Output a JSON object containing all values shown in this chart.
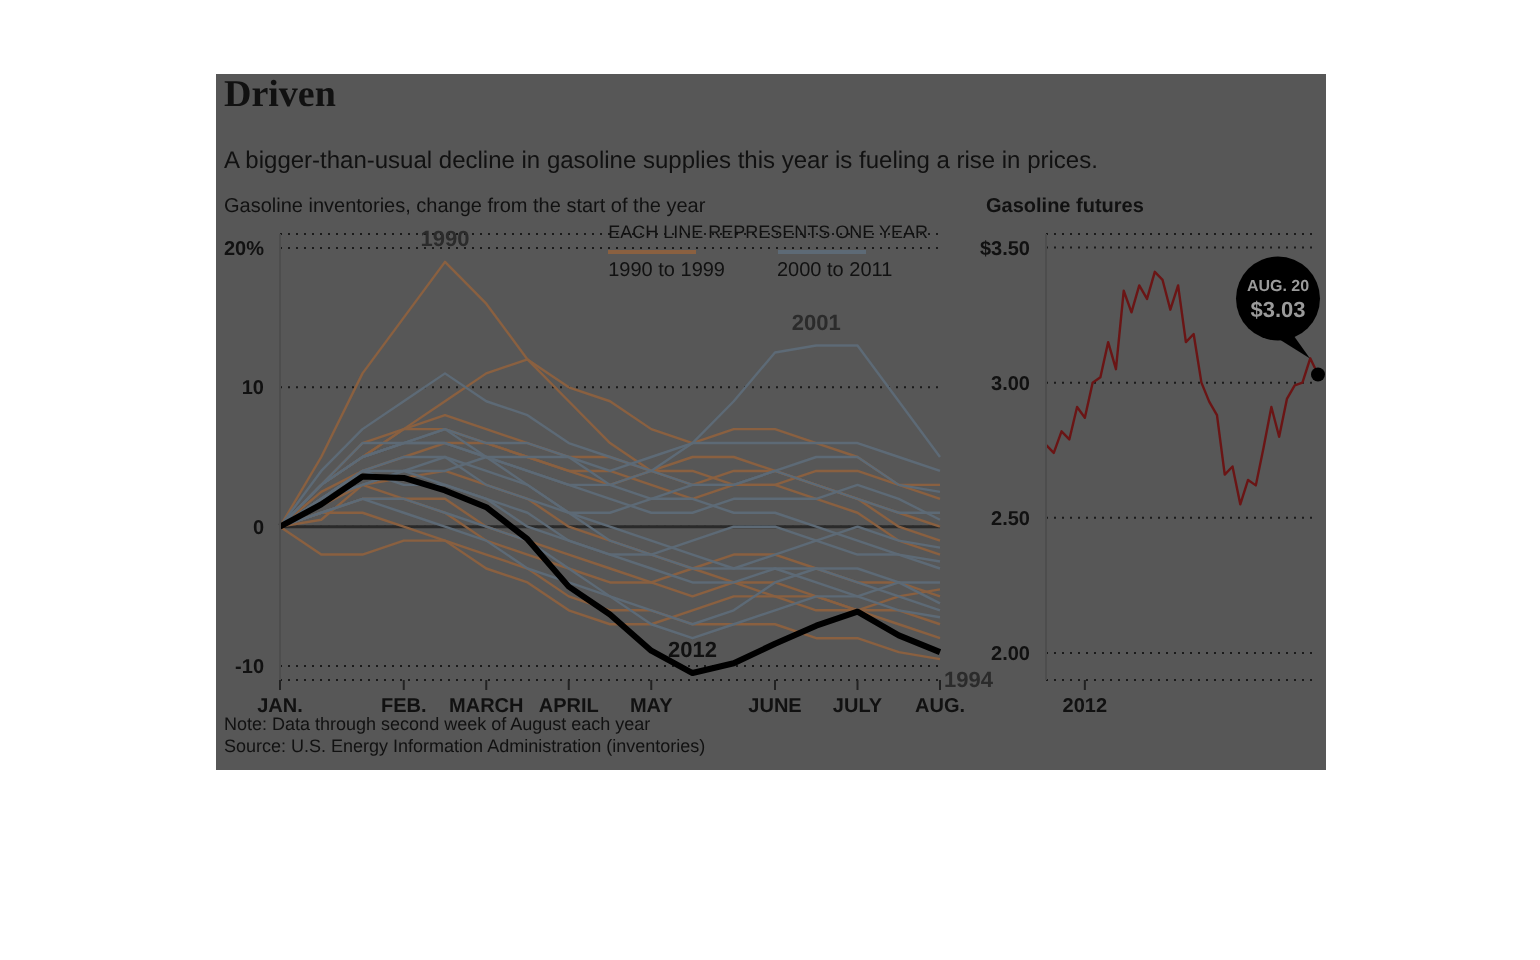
{
  "chart_data": [
    {
      "type": "line",
      "title": "Driven",
      "subtitle": "A bigger-than-usual decline in gasoline supplies this year is fueling a rise in prices.",
      "ylabel": "Gasoline inventories, change from the start of the year",
      "legend_title": "EACH LINE REPRESENTS ONE YEAR",
      "grid": "y",
      "categories": [
        "JAN.",
        null,
        null,
        "FEB.",
        null,
        "MARCH",
        null,
        "APRIL",
        null,
        "MAY",
        null,
        null,
        "JUNE",
        null,
        "JULY",
        null,
        "AUG."
      ],
      "ylim": [
        -11,
        21
      ],
      "yticks": [
        -10,
        0,
        10,
        {
          "value": 20,
          "label": "20%"
        }
      ],
      "ref_lines": [
        {
          "axis": "y",
          "value": 0,
          "color": "#2a2a2a",
          "line_style": "solid"
        }
      ],
      "series": [
        {
          "name": "1990",
          "color": "#8a6040",
          "values": [
            0,
            5,
            11,
            15,
            19,
            16,
            12,
            9,
            6,
            4,
            3,
            4,
            4,
            3,
            2,
            0,
            -1
          ]
        },
        {
          "color": "#8a6040",
          "values": [
            0,
            3,
            5,
            7,
            9,
            11,
            12,
            10,
            9,
            7,
            6,
            7,
            7,
            6,
            5,
            3,
            2
          ]
        },
        {
          "color": "#8a6040",
          "values": [
            0,
            1.5,
            3,
            3.5,
            4,
            3,
            2,
            0,
            -1,
            -2,
            -3,
            -2,
            -2,
            -3,
            -4,
            -4,
            -5
          ]
        },
        {
          "color": "#8a6040",
          "values": [
            0,
            2.5,
            4,
            5,
            6,
            6,
            5,
            4,
            3,
            4,
            5,
            5,
            4,
            3,
            2,
            1,
            0
          ]
        },
        {
          "name": "1994",
          "color": "#8a6040",
          "values": [
            0,
            -2,
            -2,
            -1,
            -1,
            -2,
            -3,
            -5,
            -6,
            -6,
            -7,
            -7,
            -7,
            -8,
            -8,
            -9,
            -9.5
          ]
        },
        {
          "color": "#8a6040",
          "values": [
            0,
            1,
            2,
            2,
            1,
            -1,
            -2,
            -3,
            -4,
            -4,
            -3,
            -4,
            -5,
            -5,
            -6,
            -6,
            -7
          ]
        },
        {
          "color": "#8a6040",
          "values": [
            0,
            1,
            1,
            0,
            -1,
            -3,
            -4,
            -6,
            -7,
            -7,
            -6,
            -5,
            -5,
            -6,
            -6,
            -7,
            -8
          ]
        },
        {
          "color": "#8a6040",
          "values": [
            0,
            3,
            6,
            7,
            7,
            6,
            5,
            4,
            4,
            3,
            2,
            3,
            3,
            2,
            1,
            -1,
            -2
          ]
        },
        {
          "color": "#8a6040",
          "values": [
            0,
            3,
            5,
            7,
            8,
            7,
            6,
            5,
            5,
            4,
            4,
            3,
            3,
            4,
            4,
            3,
            3
          ]
        },
        {
          "color": "#8a6040",
          "values": [
            0,
            0.5,
            3,
            2,
            2,
            0,
            -1,
            -2,
            -3,
            -4,
            -5,
            -4,
            -4,
            -5,
            -6,
            -5,
            -4.5
          ]
        },
        {
          "color": "#5d6a76",
          "values": [
            0,
            2,
            4,
            5,
            5,
            4,
            3,
            1,
            0,
            -1,
            -2,
            -3,
            -3,
            -3,
            -4,
            -5,
            -6
          ]
        },
        {
          "name": "2001",
          "color": "#5d6a76",
          "values": [
            0,
            3,
            5,
            6,
            7,
            5,
            4,
            3,
            3,
            4,
            6,
            9,
            12.5,
            13,
            13,
            9,
            5
          ]
        },
        {
          "color": "#5d6a76",
          "values": [
            0,
            4,
            7,
            9,
            11,
            9,
            8,
            6,
            5,
            4,
            3,
            3,
            4,
            3,
            2,
            1,
            1
          ]
        },
        {
          "color": "#5d6a76",
          "values": [
            0,
            1,
            2,
            1,
            0,
            -1,
            -3,
            -4,
            -5,
            -7,
            -8,
            -7,
            -6,
            -5,
            -5,
            -4,
            -4
          ]
        },
        {
          "color": "#5d6a76",
          "values": [
            0,
            3,
            5,
            6,
            6,
            5,
            4,
            3,
            2,
            1,
            1,
            2,
            2,
            2,
            3,
            2,
            0.5
          ]
        },
        {
          "color": "#5d6a76",
          "values": [
            0,
            2,
            3,
            4,
            5,
            3,
            2,
            1,
            1,
            2,
            3,
            3,
            4,
            5,
            5,
            3,
            2.5
          ]
        },
        {
          "color": "#5d6a76",
          "values": [
            0,
            2,
            4,
            4,
            3,
            2,
            0,
            -1,
            -2,
            -2,
            -1,
            0,
            0,
            -1,
            -2,
            -2,
            -3
          ]
        },
        {
          "color": "#5d6a76",
          "values": [
            0,
            1,
            2,
            2,
            1,
            0,
            -1,
            -3,
            -5,
            -6,
            -7,
            -6,
            -4,
            -3,
            -3,
            -4,
            -5.5
          ]
        },
        {
          "color": "#5d6a76",
          "values": [
            0,
            3,
            6,
            6,
            6,
            5,
            3,
            1,
            -1,
            -2,
            -3,
            -3,
            -2,
            -1,
            0,
            -1,
            -1.5
          ]
        },
        {
          "color": "#5d6a76",
          "values": [
            0,
            2,
            3,
            4,
            4,
            5,
            5,
            5,
            4,
            5,
            6,
            6,
            6,
            6,
            6,
            5,
            4
          ]
        },
        {
          "color": "#5d6a76",
          "values": [
            0,
            3,
            5,
            6,
            7,
            6,
            6,
            5,
            3,
            2,
            2,
            1,
            1,
            0,
            -1,
            -2,
            -2.5
          ]
        },
        {
          "color": "#5d6a76",
          "values": [
            0,
            2,
            4,
            3,
            3,
            2,
            1,
            -1,
            -2,
            -3,
            -4,
            -4,
            -3,
            -4,
            -5,
            -6,
            -6.5
          ]
        },
        {
          "name": "2012",
          "color": "#000000",
          "values": [
            0,
            1.6,
            3.6,
            3.5,
            2.6,
            1.4,
            -0.9,
            -4.3,
            -6.3,
            -8.9,
            -10.5,
            -9.8,
            -8.4,
            -7.1,
            -6.1,
            -7.8,
            -9
          ]
        }
      ],
      "annotations": [
        "1990 to 1999",
        "2000 to 2011",
        "Note: Data through second week of August each year",
        "Source: U.S. Energy Information Administration (inventories)"
      ]
    },
    {
      "type": "line",
      "title": "Gasoline futures",
      "grid": "y",
      "categories": [
        null,
        null,
        null,
        null,
        null,
        "2012",
        null,
        null,
        null,
        null,
        null,
        null,
        null,
        null,
        null,
        null,
        null,
        null,
        null,
        null,
        null,
        null,
        null,
        null,
        null,
        null,
        null,
        null,
        null,
        null,
        null,
        null,
        null,
        null,
        null,
        null
      ],
      "ylim": [
        1.9,
        3.55
      ],
      "yticks": [
        {
          "value": 2,
          "label": "2.00"
        },
        {
          "value": 2.5,
          "label": "2.50"
        },
        {
          "value": 3,
          "label": "3.00"
        },
        {
          "value": 3.5,
          "label": "$3.50"
        }
      ],
      "series": [
        {
          "color": "#6a1515",
          "values": [
            2.77,
            2.74,
            2.82,
            2.79,
            2.91,
            2.87,
            3.0,
            3.02,
            3.15,
            3.05,
            3.34,
            3.26,
            3.36,
            3.31,
            3.41,
            3.38,
            3.27,
            3.36,
            3.15,
            3.18,
            3.0,
            2.93,
            2.88,
            2.66,
            2.69,
            2.55,
            2.64,
            2.62,
            2.76,
            2.91,
            2.8,
            2.94,
            2.99,
            3.0,
            3.09,
            3.03
          ]
        }
      ],
      "annotations": [
        "AUG. 20 $3.03"
      ]
    }
  ]
}
